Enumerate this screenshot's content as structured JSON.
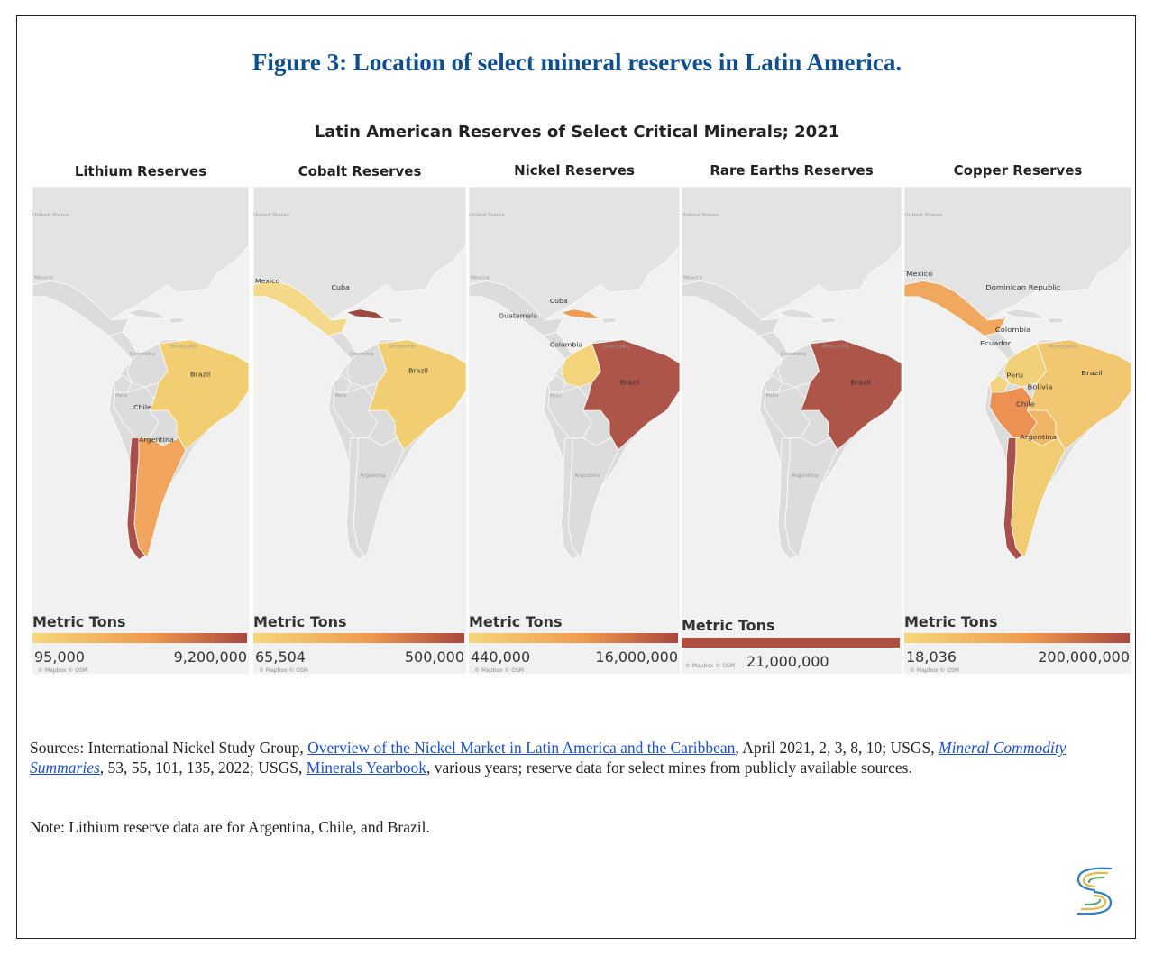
{
  "figure_title": "Figure 3: Location of select mineral reserves in Latin America.",
  "chart_title": "Latin American Reserves of Select Critical Minerals; 2021",
  "basemap_labels": {
    "united_states": "United States",
    "mexico": "Mexico",
    "venezuela": "Venezuela",
    "colombia": "Colombia",
    "peru": "Peru",
    "argentina": "Argentina"
  },
  "attribution": "© Mapbox © OSM",
  "panels": [
    {
      "title": "Lithium Reserves",
      "legend_title": "Metric Tons",
      "legend_min": "95,000",
      "legend_max": "9,200,000",
      "labels": {
        "brazil": "Brazil",
        "chile": "Chile",
        "argentina": "Argentina"
      },
      "fills": {
        "brazil": "#f2ce72",
        "argentina": "#f0a45e",
        "chile": "#a9504a"
      }
    },
    {
      "title": "Cobalt Reserves",
      "legend_title": "Metric Tons",
      "legend_min": "65,504",
      "legend_max": "500,000",
      "labels": {
        "mexico": "Mexico",
        "cuba": "Cuba",
        "brazil": "Brazil"
      },
      "fills": {
        "mexico": "#f5d98a",
        "cuba": "#9c4a3e",
        "brazil": "#f2ce72"
      }
    },
    {
      "title": "Nickel Reserves",
      "legend_title": "Metric Tons",
      "legend_min": "440,000",
      "legend_max": "16,000,000",
      "labels": {
        "cuba": "Cuba",
        "guatemala": "Guatemala",
        "colombia": "Colombia",
        "brazil": "Brazil"
      },
      "fills": {
        "cuba": "#ee9b56",
        "guatemala": "#f4d27a",
        "colombia": "#f3d47a",
        "brazil": "#ad5549"
      }
    },
    {
      "title": "Rare Earths Reserves",
      "legend_title": "Metric Tons",
      "legend_min": "",
      "legend_max": "21,000,000",
      "labels": {
        "brazil": "Brazil"
      },
      "fills": {
        "brazil": "#ad5549"
      }
    },
    {
      "title": "Copper Reserves",
      "legend_title": "Metric Tons",
      "legend_min": "18,036",
      "legend_max": "200,000,000",
      "labels": {
        "mexico": "Mexico",
        "dominican_republic": "Dominican Republic",
        "colombia": "Colombia",
        "ecuador": "Ecuador",
        "peru": "Peru",
        "bolivia": "Bolivia",
        "chile": "Chile",
        "brazil": "Brazil",
        "argentina": "Argentina"
      },
      "fills": {
        "mexico": "#f0a85f",
        "colombia": "#f2d07a",
        "ecuador": "#f3d47c",
        "peru": "#ec9152",
        "bolivia": "#f0b665",
        "chile": "#a9504a",
        "brazil": "#f2c772",
        "argentina": "#f2cc73"
      }
    }
  ],
  "sources": {
    "prefix": "Sources: International Nickel Study Group,",
    "link1": "Overview of the Nickel Market in Latin America and the Caribbean",
    "after_link1": ", April 2021, 2, 3, 8, 10; USGS,",
    "link2": "Mineral Commodity Summaries",
    "after_link2": ", 53, 55, 101, 135, 2022; USGS,",
    "link3": "Minerals Yearbook",
    "after_link3": ", various years; reserve data for select mines from publicly available sources."
  },
  "note": "Note: Lithium reserve data are for Argentina, Chile, and Brazil."
}
